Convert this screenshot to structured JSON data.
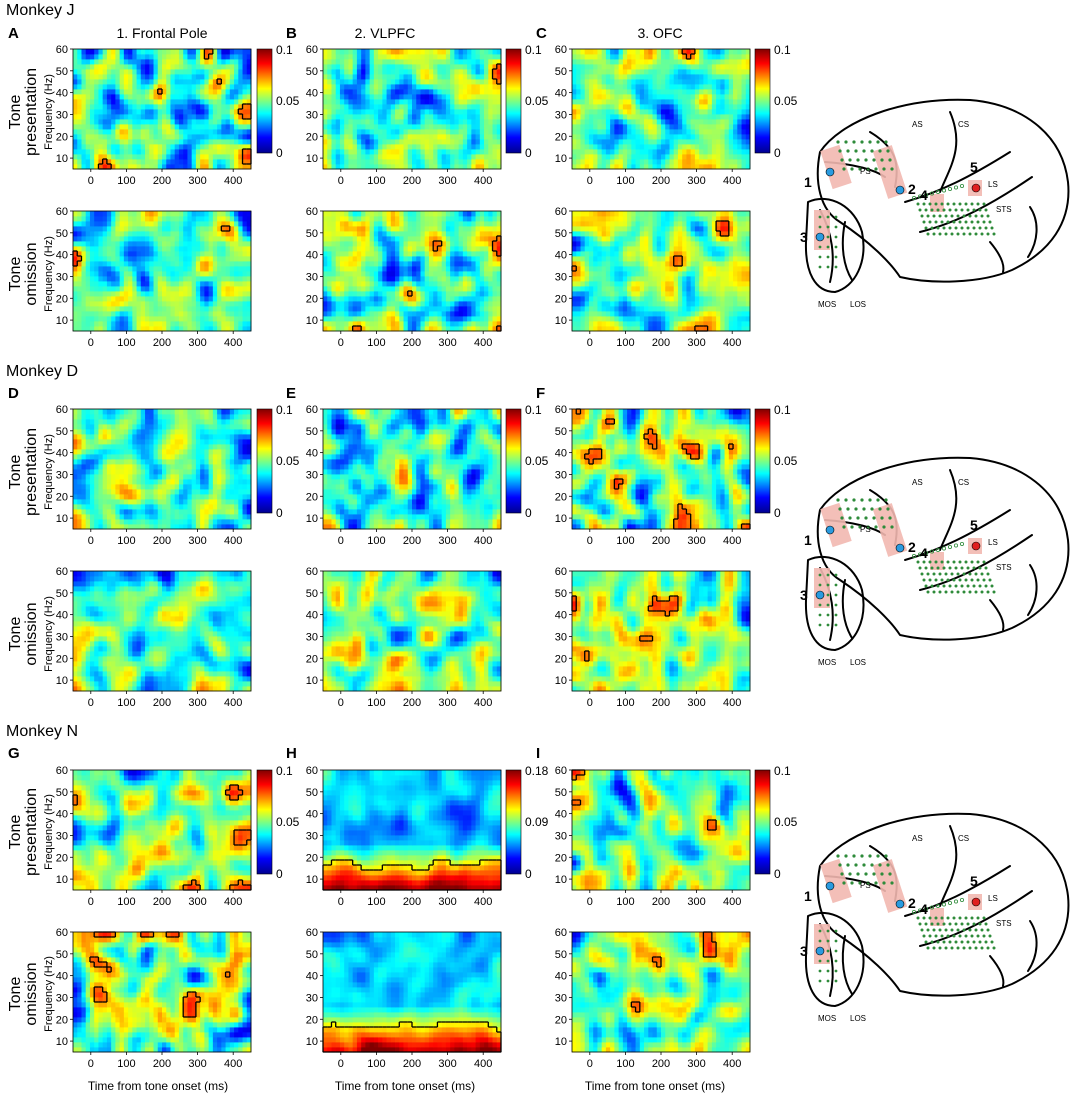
{
  "figure": {
    "xlabel": "Time from tone onset (ms)",
    "ylabel": "Frequency (Hz)",
    "row_labels": [
      [
        "Tone",
        "presentation"
      ],
      [
        "Tone",
        "omission"
      ]
    ],
    "column_titles": [
      "1. Frontal Pole",
      "2. VLPFC",
      "3. OFC"
    ],
    "x_ticks": [
      "0",
      "100",
      "200",
      "300",
      "400"
    ],
    "y_ticks": [
      "10",
      "20",
      "30",
      "40",
      "50",
      "60"
    ]
  },
  "monkeys": [
    {
      "title": "Monkey J",
      "panels": [
        {
          "letter": "A",
          "cbar_max": "0.1",
          "cbar_mid": "0.05",
          "cbar_min": "0"
        },
        {
          "letter": "B",
          "cbar_max": "0.1",
          "cbar_mid": "0.05",
          "cbar_min": "0"
        },
        {
          "letter": "C",
          "cbar_max": "0.1",
          "cbar_mid": "0.05",
          "cbar_min": "0"
        }
      ]
    },
    {
      "title": "Monkey D",
      "panels": [
        {
          "letter": "D",
          "cbar_max": "0.1",
          "cbar_mid": "0.05",
          "cbar_min": "0"
        },
        {
          "letter": "E",
          "cbar_max": "0.1",
          "cbar_mid": "0.05",
          "cbar_min": "0"
        },
        {
          "letter": "F",
          "cbar_max": "0.1",
          "cbar_mid": "0.05",
          "cbar_min": "0"
        }
      ]
    },
    {
      "title": "Monkey N",
      "panels": [
        {
          "letter": "G",
          "cbar_max": "0.1",
          "cbar_mid": "0.05",
          "cbar_min": "0"
        },
        {
          "letter": "H",
          "cbar_max": "0.18",
          "cbar_mid": "0.09",
          "cbar_min": "0"
        },
        {
          "letter": "I",
          "cbar_max": "0.1",
          "cbar_mid": "0.05",
          "cbar_min": "0"
        }
      ]
    }
  ],
  "brain": {
    "sulci": [
      "CS",
      "AS",
      "PS",
      "LS",
      "STS",
      "MOS",
      "LOS"
    ],
    "site_numbers": [
      "1",
      "2",
      "3",
      "4",
      "5"
    ]
  },
  "colors": {
    "colormap": [
      "#00008f",
      "#0000ff",
      "#00ffff",
      "#ffff00",
      "#ff0000",
      "#800000"
    ],
    "electrode_green": "#2e8b3a",
    "site_blue": "#2a9be0",
    "site_red": "#e02020",
    "highlight": "#f2b8b0"
  },
  "chart_data": {
    "type": "heatmap",
    "x_range_ms": [
      -50,
      450
    ],
    "y_range_hz": [
      5,
      60
    ],
    "panel_kinds": {
      "A": "sparse",
      "B": "sparse",
      "C": "sparse",
      "D": "none",
      "E": "none",
      "F": "sparse",
      "G": "sparse",
      "H": "low-frequency-band",
      "I": "sparse"
    }
  }
}
